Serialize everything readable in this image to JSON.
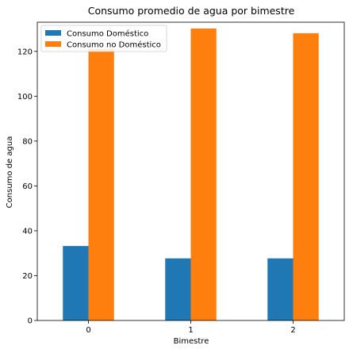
{
  "chart_data": {
    "type": "bar",
    "title": "Consumo promedio de agua por bimestre",
    "xlabel": "Bimestre",
    "ylabel": "Consumo de agua",
    "categories": [
      "0",
      "1",
      "2"
    ],
    "series": [
      {
        "name": "Consumo Doméstico",
        "values": [
          33.2,
          27.7,
          27.7
        ],
        "color": "#1f77b4"
      },
      {
        "name": "Consumo no Doméstico",
        "values": [
          121,
          130.2,
          128.1
        ],
        "color": "#ff7f0e"
      }
    ],
    "ylim": [
      0,
      133
    ],
    "yticks": [
      0,
      20,
      40,
      60,
      80,
      100,
      120
    ],
    "grid": false,
    "legend_position": "top-left"
  }
}
